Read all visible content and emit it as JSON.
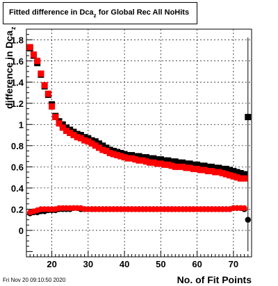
{
  "title_main": "Fitted difference in Dca",
  "title_sub": "z",
  "title_rest": "for Global Rec All NoHits",
  "footer_date": "Fri Nov 20 09:10:50 2020",
  "chart_data": {
    "type": "scatter",
    "title": "Fitted difference in Dca_z for Global Rec All NoHits",
    "xlabel": "No. of Fit Points",
    "ylabel": "difference in Dca_z",
    "xlim": [
      13,
      75
    ],
    "ylim": [
      -0.25,
      1.9
    ],
    "xticks": [
      20,
      30,
      40,
      50,
      60,
      70
    ],
    "yticks": [
      0,
      0.2,
      0.4,
      0.6,
      0.8,
      1,
      1.2,
      1.4,
      1.6,
      1.8
    ],
    "ytick_labels": [
      "0",
      "0.2",
      "0.4",
      "0.6",
      "0.8",
      "1",
      "1.2",
      "1.4",
      "1.6",
      "1.8"
    ],
    "grid": true,
    "series": [
      {
        "marker": "square",
        "color": "#000000",
        "x": [
          14,
          15,
          16,
          17,
          18,
          19,
          20,
          21,
          22,
          23,
          24,
          25,
          26,
          27,
          28,
          29,
          30,
          31,
          32,
          33,
          34,
          35,
          36,
          37,
          38,
          39,
          40,
          41,
          42,
          43,
          44,
          45,
          46,
          47,
          48,
          49,
          50,
          51,
          52,
          53,
          54,
          55,
          56,
          57,
          58,
          59,
          60,
          61,
          62,
          63,
          64,
          65,
          66,
          67,
          68,
          69,
          70,
          71,
          72,
          73
        ],
        "y": [
          1.72,
          1.65,
          1.58,
          1.47,
          1.36,
          1.28,
          1.19,
          1.08,
          1.03,
          1.0,
          0.97,
          0.95,
          0.93,
          0.91,
          0.9,
          0.88,
          0.87,
          0.85,
          0.84,
          0.82,
          0.8,
          0.78,
          0.76,
          0.75,
          0.74,
          0.73,
          0.72,
          0.71,
          0.71,
          0.7,
          0.7,
          0.69,
          0.69,
          0.68,
          0.68,
          0.67,
          0.67,
          0.66,
          0.66,
          0.65,
          0.65,
          0.64,
          0.64,
          0.63,
          0.63,
          0.62,
          0.62,
          0.61,
          0.61,
          0.6,
          0.6,
          0.59,
          0.59,
          0.58,
          0.58,
          0.57,
          0.56,
          0.55,
          0.54,
          0.53
        ]
      },
      {
        "marker": "square",
        "color": "#ff0000",
        "x": [
          14,
          15,
          16,
          17,
          18,
          19,
          20,
          21,
          22,
          23,
          24,
          25,
          26,
          27,
          28,
          29,
          30,
          31,
          32,
          33,
          34,
          35,
          36,
          37,
          38,
          39,
          40,
          41,
          42,
          43,
          44,
          45,
          46,
          47,
          48,
          49,
          50,
          51,
          52,
          53,
          54,
          55,
          56,
          57,
          58,
          59,
          60,
          61,
          62,
          63,
          64,
          65,
          66,
          67,
          68,
          69,
          70,
          71,
          72,
          73
        ],
        "y": [
          1.73,
          1.66,
          1.6,
          1.48,
          1.37,
          1.29,
          1.17,
          1.07,
          1.01,
          0.97,
          0.94,
          0.92,
          0.9,
          0.88,
          0.87,
          0.85,
          0.84,
          0.82,
          0.8,
          0.78,
          0.76,
          0.75,
          0.73,
          0.72,
          0.71,
          0.7,
          0.69,
          0.68,
          0.68,
          0.67,
          0.66,
          0.66,
          0.65,
          0.64,
          0.64,
          0.63,
          0.63,
          0.62,
          0.62,
          0.61,
          0.6,
          0.6,
          0.6,
          0.59,
          0.59,
          0.58,
          0.58,
          0.57,
          0.57,
          0.56,
          0.56,
          0.55,
          0.55,
          0.54,
          0.53,
          0.52,
          0.51,
          0.5,
          0.49,
          0.49
        ]
      },
      {
        "marker": "circle",
        "color": "#000000",
        "x": [
          14,
          15,
          16,
          17,
          18,
          19,
          20,
          21,
          22,
          23,
          24,
          25,
          26,
          27,
          28,
          29,
          30,
          31,
          32,
          33,
          34,
          35,
          36,
          37,
          38,
          39,
          40,
          41,
          42,
          43,
          44,
          45,
          46,
          47,
          48,
          49,
          50,
          51,
          52,
          53,
          54,
          55,
          56,
          57,
          58,
          59,
          60,
          61,
          62,
          63,
          64,
          65,
          66,
          67,
          68,
          69,
          70,
          71,
          72,
          73
        ],
        "y": [
          0.16,
          0.17,
          0.17,
          0.18,
          0.18,
          0.19,
          0.19,
          0.19,
          0.2,
          0.2,
          0.2,
          0.2,
          0.21,
          0.21,
          0.2,
          0.2,
          0.2,
          0.2,
          0.2,
          0.2,
          0.2,
          0.2,
          0.2,
          0.2,
          0.2,
          0.2,
          0.2,
          0.2,
          0.2,
          0.2,
          0.2,
          0.2,
          0.2,
          0.2,
          0.2,
          0.2,
          0.2,
          0.2,
          0.2,
          0.2,
          0.2,
          0.2,
          0.2,
          0.2,
          0.2,
          0.2,
          0.2,
          0.2,
          0.2,
          0.2,
          0.2,
          0.2,
          0.2,
          0.2,
          0.2,
          0.2,
          0.21,
          0.21,
          0.21,
          0.2
        ]
      },
      {
        "marker": "circle",
        "color": "#ff0000",
        "x": [
          14,
          15,
          16,
          17,
          18,
          19,
          20,
          21,
          22,
          23,
          24,
          25,
          26,
          27,
          28,
          29,
          30,
          31,
          32,
          33,
          34,
          35,
          36,
          37,
          38,
          39,
          40,
          41,
          42,
          43,
          44,
          45,
          46,
          47,
          48,
          49,
          50,
          51,
          52,
          53,
          54,
          55,
          56,
          57,
          58,
          59,
          60,
          61,
          62,
          63,
          64,
          65,
          66,
          67,
          68,
          69,
          70,
          71,
          72,
          73
        ],
        "y": [
          0.17,
          0.18,
          0.19,
          0.2,
          0.2,
          0.2,
          0.2,
          0.2,
          0.21,
          0.21,
          0.21,
          0.21,
          0.21,
          0.21,
          0.21,
          0.2,
          0.2,
          0.2,
          0.2,
          0.2,
          0.2,
          0.2,
          0.2,
          0.2,
          0.2,
          0.2,
          0.2,
          0.2,
          0.2,
          0.2,
          0.2,
          0.2,
          0.2,
          0.2,
          0.2,
          0.2,
          0.2,
          0.2,
          0.2,
          0.2,
          0.2,
          0.2,
          0.2,
          0.2,
          0.2,
          0.2,
          0.2,
          0.2,
          0.2,
          0.2,
          0.2,
          0.2,
          0.2,
          0.2,
          0.2,
          0.2,
          0.21,
          0.21,
          0.21,
          0.21
        ]
      },
      {
        "marker": "square",
        "color": "#000000",
        "x": [
          74
        ],
        "y": [
          1.07
        ]
      },
      {
        "marker": "circle",
        "color": "#000000",
        "x": [
          74
        ],
        "y": [
          0.1
        ]
      }
    ]
  }
}
